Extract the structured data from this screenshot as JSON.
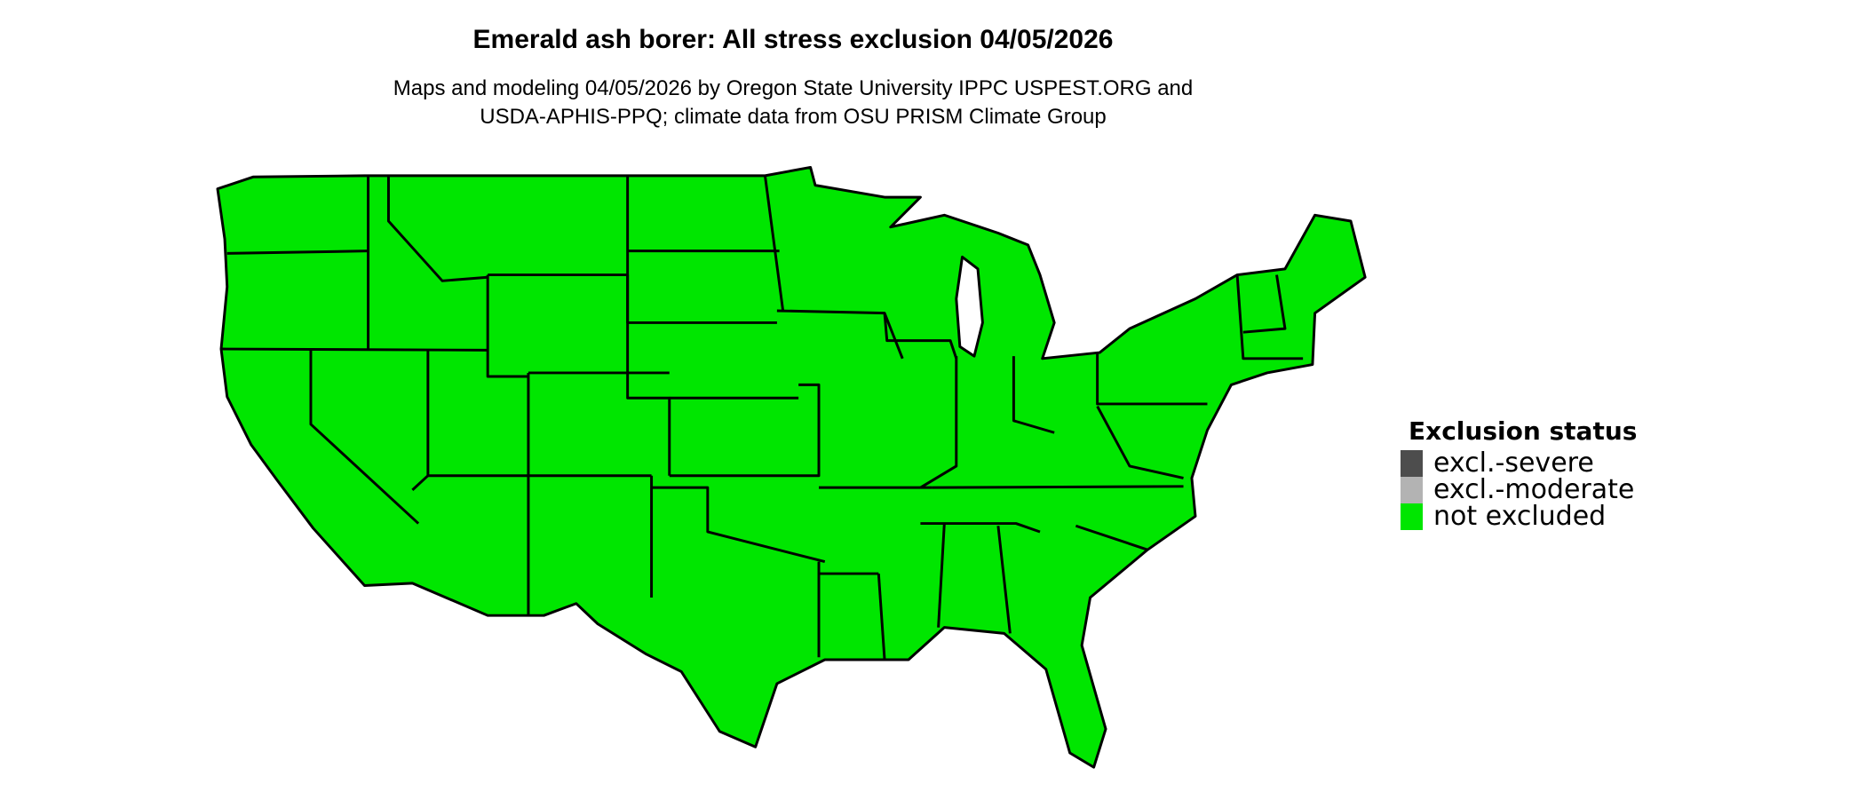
{
  "title": "Emerald ash borer: All stress exclusion 04/05/2026",
  "subtitle_lines": [
    "Maps and modeling 04/05/2026 by Oregon State University IPPC USPEST.ORG and",
    "USDA-APHIS-PPQ; climate data from OSU PRISM Climate Group"
  ],
  "map": {
    "region": "Contiguous United States",
    "fill_status": "not excluded",
    "fill_color": "#00E600",
    "border_color": "#000000"
  },
  "legend": {
    "title": "Exclusion status",
    "items": [
      {
        "label": "excl.-severe",
        "color": "#4D4D4D"
      },
      {
        "label": "excl.-moderate",
        "color": "#B3B3B3"
      },
      {
        "label": "not excluded",
        "color": "#00E600"
      }
    ]
  }
}
